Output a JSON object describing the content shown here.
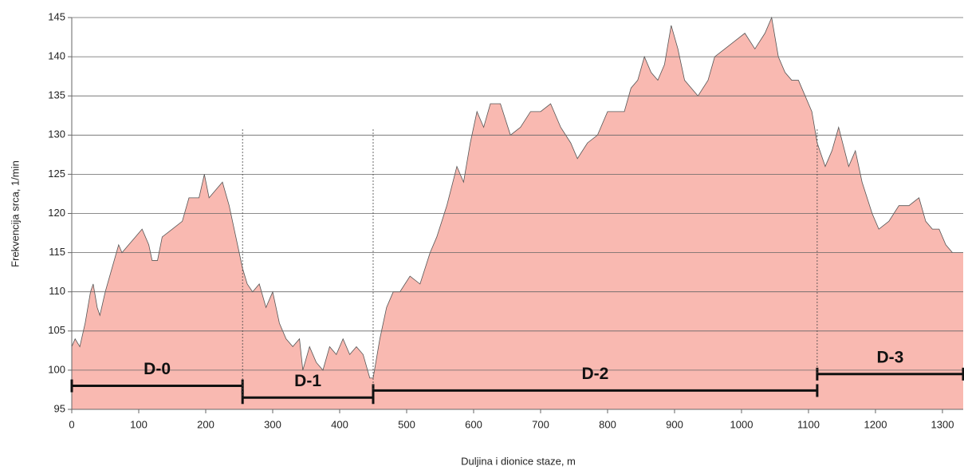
{
  "chart_data": {
    "type": "area",
    "x_label": "Duljina i dionice staze, m",
    "y_label": "Frekvencija srca, 1/min",
    "xlim": [
      0,
      1331
    ],
    "ylim": [
      95,
      145
    ],
    "xticks": [
      0,
      100,
      200,
      300,
      400,
      500,
      600,
      700,
      800,
      900,
      1000,
      1100,
      1200,
      1300
    ],
    "yticks": [
      95,
      100,
      105,
      110,
      115,
      120,
      125,
      130,
      135,
      140,
      145
    ],
    "grid": true,
    "x": [
      0,
      5,
      12,
      20,
      28,
      32,
      38,
      42,
      50,
      60,
      70,
      75,
      85,
      95,
      105,
      115,
      120,
      128,
      135,
      150,
      165,
      175,
      190,
      198,
      205,
      215,
      225,
      235,
      245,
      255,
      262,
      270,
      280,
      290,
      300,
      310,
      320,
      330,
      340,
      345,
      355,
      365,
      375,
      385,
      395,
      405,
      415,
      425,
      435,
      445,
      450,
      460,
      470,
      480,
      490,
      505,
      520,
      535,
      545,
      560,
      575,
      585,
      595,
      605,
      615,
      625,
      640,
      655,
      670,
      685,
      700,
      715,
      730,
      745,
      755,
      770,
      785,
      800,
      815,
      825,
      835,
      845,
      855,
      865,
      875,
      885,
      895,
      905,
      915,
      925,
      935,
      950,
      960,
      975,
      990,
      1005,
      1020,
      1035,
      1045,
      1055,
      1065,
      1075,
      1085,
      1095,
      1105,
      1113,
      1125,
      1135,
      1145,
      1160,
      1170,
      1180,
      1195,
      1205,
      1220,
      1235,
      1250,
      1265,
      1275,
      1285,
      1295,
      1305,
      1315,
      1331
    ],
    "series": [
      {
        "name": "Frekvencija srca",
        "color": "#f9b9b1",
        "values": [
          103,
          104,
          103,
          106,
          110,
          111,
          108,
          107,
          110,
          113,
          116,
          115,
          116,
          117,
          118,
          116,
          114,
          114,
          117,
          118,
          119,
          122,
          122,
          125,
          122,
          123,
          124,
          121,
          117,
          113,
          111,
          110,
          111,
          108,
          110,
          106,
          104,
          103,
          104,
          100,
          103,
          101,
          100,
          103,
          102,
          104,
          102,
          103,
          102,
          99,
          99,
          104,
          108,
          110,
          110,
          112,
          111,
          115,
          117,
          121,
          126,
          124,
          129,
          133,
          131,
          134,
          134,
          130,
          131,
          133,
          133,
          134,
          131,
          129,
          127,
          129,
          130,
          133,
          133,
          133,
          136,
          137,
          140,
          138,
          137,
          139,
          144,
          141,
          137,
          136,
          135,
          137,
          140,
          141,
          142,
          143,
          141,
          143,
          145,
          140,
          138,
          137,
          137,
          135,
          133,
          129,
          126,
          128,
          131,
          126,
          128,
          124,
          120,
          118,
          119,
          121,
          121,
          122,
          119,
          118,
          118,
          116,
          115,
          115
        ]
      }
    ],
    "segments": [
      {
        "label": "D-0",
        "start": 0,
        "end": 255,
        "level": 98
      },
      {
        "label": "D-1",
        "start": 255,
        "end": 450,
        "level": 96.5
      },
      {
        "label": "D-2",
        "start": 450,
        "end": 1113,
        "level": 97.4
      },
      {
        "label": "D-3",
        "start": 1113,
        "end": 1331,
        "level": 99.5
      }
    ]
  }
}
